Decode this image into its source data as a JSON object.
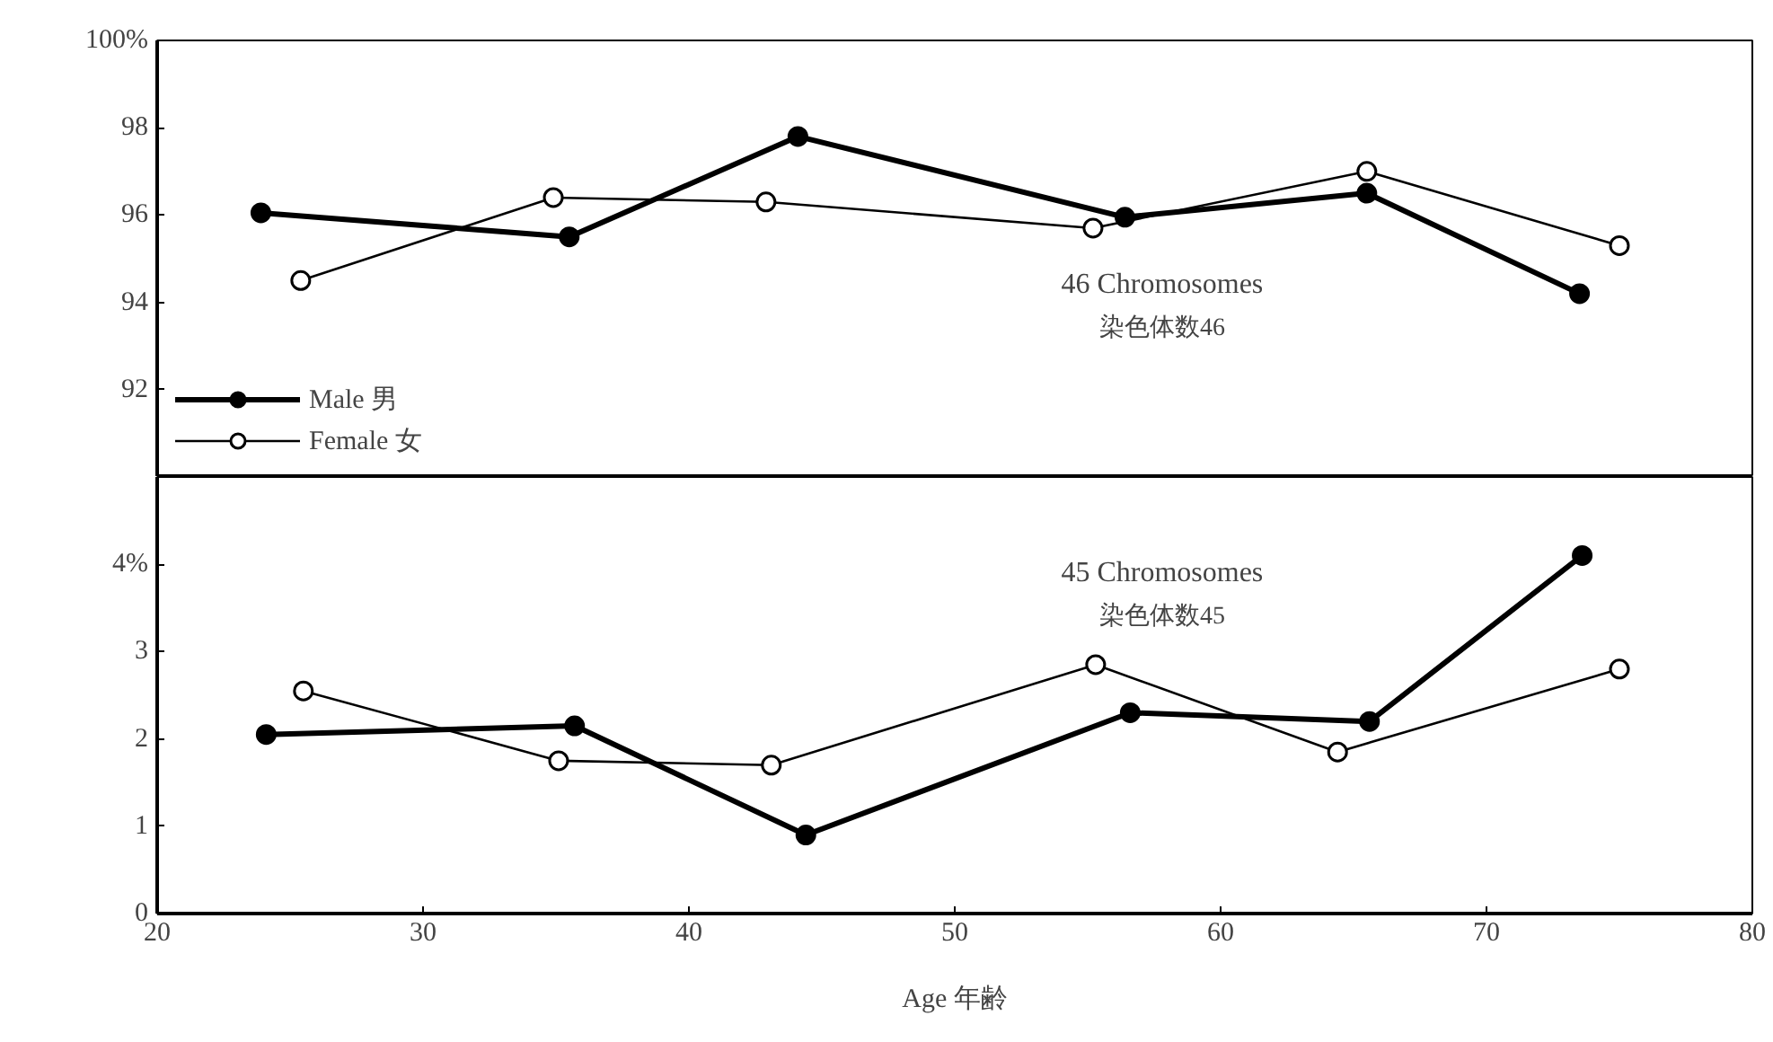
{
  "chart_data": [
    {
      "type": "line",
      "marker": "circle",
      "line_style": "solid",
      "grid": false,
      "legend": "bottom left",
      "tick_labels": "y",
      "xlim": [
        20,
        80
      ],
      "ylim": [
        90,
        100
      ],
      "yticks": [
        {
          "value": 100,
          "label": "100%"
        },
        98,
        96,
        94,
        92
      ],
      "annotations": [
        "46 Chromosomes",
        "染色体数46"
      ],
      "series": [
        {
          "name": "Male 男",
          "color": "#000000",
          "x": [
            23.9,
            35.5,
            44.1,
            56.4,
            65.5,
            73.5
          ],
          "values": [
            96.05,
            95.5,
            97.8,
            95.95,
            96.5,
            94.2
          ]
        },
        {
          "name": "Female 女",
          "color": "#000000",
          "x": [
            25.4,
            34.9,
            42.9,
            55.2,
            65.5,
            75.0
          ],
          "values": [
            94.5,
            96.4,
            96.3,
            95.7,
            97.0,
            95.3
          ]
        }
      ]
    },
    {
      "type": "line",
      "marker": "circle",
      "line_style": "solid",
      "grid": false,
      "xlabel": "Age 年齢",
      "xlim": [
        20,
        80
      ],
      "xticks": [
        20,
        30,
        40,
        50,
        60,
        70,
        80
      ],
      "ylim": [
        0,
        5
      ],
      "yticks": [
        0,
        1,
        2,
        3,
        {
          "value": 4,
          "label": "4%"
        }
      ],
      "annotations": [
        "45 Chromosomes",
        "染色体数45"
      ],
      "series": [
        {
          "color": "#000000",
          "x": [
            24.1,
            35.7,
            44.4,
            56.6,
            65.6,
            73.6
          ],
          "values": [
            2.05,
            2.15,
            0.9,
            2.3,
            2.2,
            4.1
          ]
        },
        {
          "color": "#000000",
          "x": [
            25.5,
            35.1,
            43.1,
            55.3,
            64.4,
            75.0
          ],
          "values": [
            2.55,
            1.75,
            1.7,
            2.85,
            1.85,
            2.8
          ]
        }
      ]
    }
  ]
}
